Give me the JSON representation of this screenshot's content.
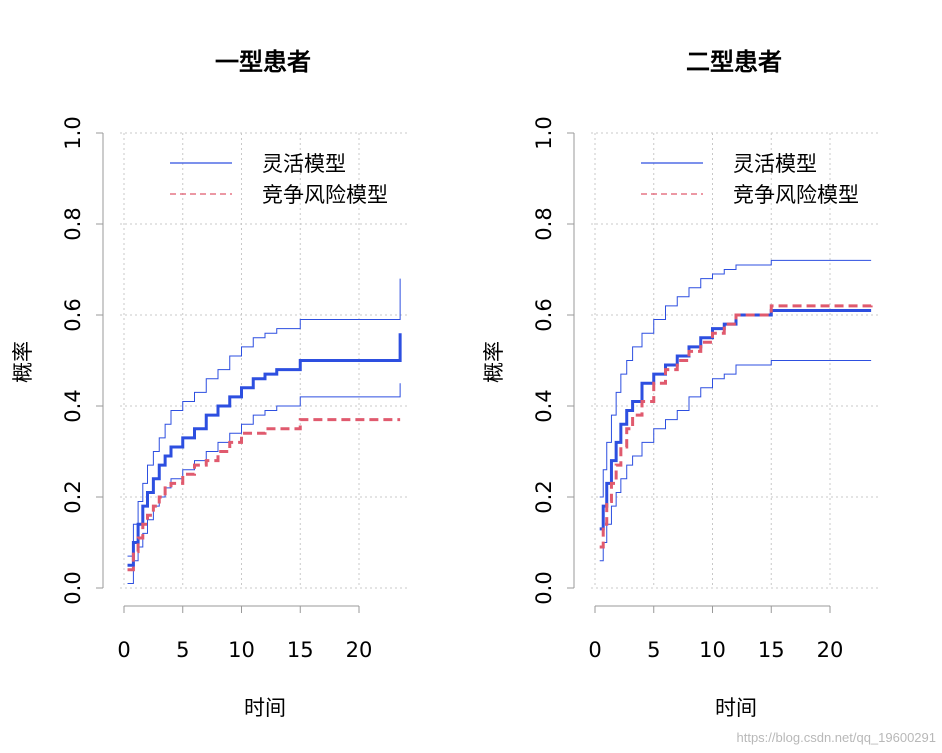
{
  "colors": {
    "blue": "#2d4fe0",
    "red": "#e05a6e",
    "grid": "#c8c8c8",
    "axis": "#999999"
  },
  "watermark": "https://blog.csdn.net/qq_19600291",
  "chart_data": [
    {
      "type": "line",
      "title": "一型患者",
      "xlabel": "时间",
      "ylabel": "概率",
      "xlim": [
        0,
        24
      ],
      "ylim": [
        0,
        1
      ],
      "xticks": [
        0,
        5,
        10,
        15,
        20
      ],
      "yticks": [
        0.0,
        0.2,
        0.4,
        0.6,
        0.8,
        1.0
      ],
      "ytick_labels": [
        "0.0",
        "0.2",
        "0.4",
        "0.6",
        "0.8",
        "1.0"
      ],
      "grid": true,
      "legend_position": "top-right",
      "legend": [
        "灵活模型",
        "竞争风险模型"
      ],
      "series": [
        {
          "name": "灵活模型",
          "role": "estimate",
          "color": "#2d4fe0",
          "style": "step",
          "dash": false,
          "x": [
            0.3,
            0.8,
            1.2,
            1.6,
            2.0,
            2.5,
            3.0,
            3.5,
            4.0,
            5.0,
            6.0,
            7.0,
            8.0,
            9.0,
            10.0,
            11.0,
            12.0,
            13.0,
            15.0,
            23.5,
            23.5
          ],
          "y": [
            0.05,
            0.1,
            0.14,
            0.18,
            0.21,
            0.24,
            0.27,
            0.29,
            0.31,
            0.33,
            0.35,
            0.38,
            0.4,
            0.42,
            0.44,
            0.46,
            0.47,
            0.48,
            0.5,
            0.5,
            0.56
          ]
        },
        {
          "name": "",
          "role": "upper",
          "color": "#2d4fe0",
          "style": "step",
          "dash": false,
          "x": [
            0.3,
            0.8,
            1.2,
            1.6,
            2.0,
            2.5,
            3.0,
            3.5,
            4.0,
            5.0,
            6.0,
            7.0,
            8.0,
            9.0,
            10.0,
            11.0,
            12.0,
            13.0,
            15.0,
            23.5,
            23.5
          ],
          "y": [
            0.07,
            0.14,
            0.19,
            0.23,
            0.27,
            0.3,
            0.33,
            0.36,
            0.39,
            0.41,
            0.43,
            0.46,
            0.48,
            0.51,
            0.53,
            0.55,
            0.56,
            0.57,
            0.59,
            0.59,
            0.68
          ]
        },
        {
          "name": "",
          "role": "lower",
          "color": "#2d4fe0",
          "style": "step",
          "dash": false,
          "x": [
            0.3,
            0.8,
            1.2,
            1.6,
            2.0,
            2.5,
            3.0,
            3.5,
            4.0,
            5.0,
            6.0,
            7.0,
            8.0,
            9.0,
            10.0,
            11.0,
            12.0,
            13.0,
            15.0,
            23.5,
            23.5
          ],
          "y": [
            0.01,
            0.06,
            0.09,
            0.12,
            0.15,
            0.18,
            0.2,
            0.22,
            0.24,
            0.26,
            0.28,
            0.3,
            0.32,
            0.34,
            0.36,
            0.38,
            0.39,
            0.4,
            0.42,
            0.42,
            0.45
          ]
        },
        {
          "name": "竞争风险模型",
          "role": "estimate",
          "color": "#e05a6e",
          "style": "step",
          "dash": true,
          "x": [
            0.3,
            0.8,
            1.2,
            1.6,
            2.0,
            2.5,
            3.0,
            3.5,
            4.0,
            5.0,
            6.0,
            7.0,
            8.0,
            9.0,
            10.0,
            12.0,
            15.0,
            23.5
          ],
          "y": [
            0.04,
            0.08,
            0.11,
            0.14,
            0.16,
            0.18,
            0.2,
            0.22,
            0.23,
            0.25,
            0.27,
            0.28,
            0.3,
            0.32,
            0.34,
            0.35,
            0.37,
            0.37
          ]
        }
      ]
    },
    {
      "type": "line",
      "title": "二型患者",
      "xlabel": "时间",
      "ylabel": "概率",
      "xlim": [
        0,
        24
      ],
      "ylim": [
        0,
        1
      ],
      "xticks": [
        0,
        5,
        10,
        15,
        20
      ],
      "yticks": [
        0.0,
        0.2,
        0.4,
        0.6,
        0.8,
        1.0
      ],
      "ytick_labels": [
        "0.0",
        "0.2",
        "0.4",
        "0.6",
        "0.8",
        "1.0"
      ],
      "grid": true,
      "legend_position": "top-right",
      "legend": [
        "灵活模型",
        "竞争风险模型"
      ],
      "series": [
        {
          "name": "灵活模型",
          "role": "estimate",
          "color": "#2d4fe0",
          "style": "step",
          "dash": false,
          "x": [
            0.4,
            0.7,
            1.0,
            1.4,
            1.8,
            2.2,
            2.7,
            3.2,
            4.0,
            5.0,
            6.0,
            7.0,
            8.0,
            9.0,
            10.0,
            11.0,
            12.0,
            15.0,
            23.5
          ],
          "y": [
            0.13,
            0.18,
            0.23,
            0.28,
            0.32,
            0.36,
            0.39,
            0.41,
            0.45,
            0.47,
            0.49,
            0.51,
            0.53,
            0.55,
            0.57,
            0.58,
            0.6,
            0.61,
            0.61
          ]
        },
        {
          "name": "",
          "role": "upper",
          "color": "#2d4fe0",
          "style": "step",
          "dash": false,
          "x": [
            0.4,
            0.7,
            1.0,
            1.4,
            1.8,
            2.2,
            2.7,
            3.2,
            4.0,
            5.0,
            6.0,
            7.0,
            8.0,
            9.0,
            10.0,
            11.0,
            12.0,
            15.0,
            23.5
          ],
          "y": [
            0.2,
            0.26,
            0.32,
            0.38,
            0.43,
            0.47,
            0.5,
            0.53,
            0.56,
            0.59,
            0.62,
            0.64,
            0.66,
            0.68,
            0.69,
            0.7,
            0.71,
            0.72,
            0.72
          ]
        },
        {
          "name": "",
          "role": "lower",
          "color": "#2d4fe0",
          "style": "step",
          "dash": false,
          "x": [
            0.4,
            0.7,
            1.0,
            1.4,
            1.8,
            2.2,
            2.7,
            3.2,
            4.0,
            5.0,
            6.0,
            7.0,
            8.0,
            9.0,
            10.0,
            11.0,
            12.0,
            15.0,
            23.5
          ],
          "y": [
            0.06,
            0.1,
            0.14,
            0.18,
            0.21,
            0.24,
            0.27,
            0.29,
            0.32,
            0.35,
            0.37,
            0.39,
            0.42,
            0.44,
            0.46,
            0.47,
            0.49,
            0.5,
            0.5
          ]
        },
        {
          "name": "竞争风险模型",
          "role": "estimate",
          "color": "#e05a6e",
          "style": "step",
          "dash": true,
          "x": [
            0.4,
            0.7,
            1.0,
            1.4,
            1.8,
            2.2,
            2.7,
            3.2,
            4.0,
            5.0,
            6.0,
            7.0,
            8.0,
            9.0,
            10.0,
            11.0,
            12.0,
            15.0,
            23.5,
            23.5
          ],
          "y": [
            0.09,
            0.14,
            0.19,
            0.23,
            0.27,
            0.31,
            0.35,
            0.38,
            0.41,
            0.45,
            0.48,
            0.5,
            0.52,
            0.54,
            0.56,
            0.58,
            0.6,
            0.62,
            0.62,
            0.63
          ]
        }
      ]
    }
  ]
}
